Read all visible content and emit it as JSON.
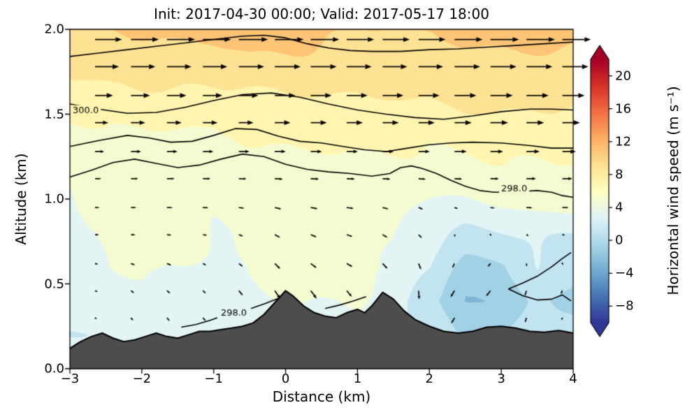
{
  "title": "Init: 2017-04-30 00:00; Valid: 2017-05-17 18:00",
  "chart_data": {
    "type": "heatmap",
    "title": "Init: 2017-04-30 00:00; Valid: 2017-05-17 18:00",
    "xlabel": "Distance (km)",
    "ylabel": "Altitude (km)",
    "xlim": [
      -3,
      4
    ],
    "ylim": [
      0,
      2
    ],
    "xticks": [
      -3,
      -2,
      -1,
      0,
      1,
      2,
      3,
      4
    ],
    "xticklabels": [
      "−3",
      "−2",
      "−1",
      "0",
      "1",
      "2",
      "3",
      "4"
    ],
    "yticks": [
      0,
      0.5,
      1,
      1.5,
      2
    ],
    "yticklabels": [
      "0.0",
      "0.5",
      "1.0",
      "1.5",
      "2.0"
    ],
    "colorbar": {
      "label": "Horizontal wind speed (m s⁻¹)",
      "ticks": [
        20,
        16,
        12,
        8,
        4,
        0,
        -4,
        -8
      ],
      "ticklabels": [
        "20",
        "16",
        "12",
        "8",
        "4",
        "0",
        "−4",
        "−8"
      ],
      "vmin": -10,
      "vmax": 22,
      "extend": "both",
      "cmap": "RdYlBu_r",
      "cmap_stops": [
        [
          0,
          [
            49,
            54,
            149
          ]
        ],
        [
          0.1,
          [
            69,
            117,
            180
          ]
        ],
        [
          0.2,
          [
            116,
            173,
            209
          ]
        ],
        [
          0.3,
          [
            171,
            217,
            233
          ]
        ],
        [
          0.4,
          [
            224,
            243,
            248
          ]
        ],
        [
          0.5,
          [
            255,
            255,
            191
          ]
        ],
        [
          0.6,
          [
            254,
            224,
            144
          ]
        ],
        [
          0.7,
          [
            253,
            174,
            97
          ]
        ],
        [
          0.8,
          [
            244,
            109,
            67
          ]
        ],
        [
          0.9,
          [
            215,
            48,
            39
          ]
        ],
        [
          1,
          [
            165,
            0,
            38
          ]
        ]
      ]
    },
    "grid": {
      "x": [
        -3,
        -2.5,
        -2,
        -1.5,
        -1,
        -0.5,
        0,
        0.5,
        1,
        1.5,
        2,
        2.5,
        3,
        3.5,
        4
      ],
      "y": [
        0,
        0.2,
        0.4,
        0.6,
        0.8,
        1,
        1.2,
        1.4,
        1.6,
        1.8,
        2
      ],
      "speed": [
        [
          2,
          2.5,
          2.5,
          3,
          3,
          3.5,
          3.5,
          3.5,
          3,
          2.5,
          1,
          0,
          0.5,
          1,
          1.5
        ],
        [
          2,
          2.5,
          3,
          3,
          3,
          3.5,
          4,
          4,
          3.5,
          2.5,
          1,
          -0.5,
          0,
          1,
          1.5
        ],
        [
          2.5,
          3,
          3.5,
          3.5,
          3.5,
          4,
          4,
          4,
          4,
          3,
          0.5,
          -2,
          -1.5,
          0.5,
          -0.5
        ],
        [
          3,
          4,
          4.5,
          4,
          3.5,
          4,
          4.5,
          4.5,
          4.5,
          4,
          2,
          -1,
          -0.5,
          2,
          0.5
        ],
        [
          3.5,
          4,
          4.5,
          4.5,
          4,
          4.5,
          5,
          5,
          4.5,
          4,
          2.5,
          1.5,
          2,
          2.5,
          2
        ],
        [
          4,
          4.5,
          4.5,
          4.5,
          4.5,
          5,
          5,
          5,
          5,
          4.5,
          4,
          4,
          4.5,
          5,
          5
        ],
        [
          4.5,
          5,
          5,
          5,
          5,
          5.5,
          5.5,
          5.5,
          5.5,
          5.5,
          5.5,
          5.5,
          6,
          6,
          6
        ],
        [
          5.5,
          6,
          6,
          6,
          6,
          6.5,
          6.5,
          6.5,
          6.5,
          6.5,
          6.5,
          7,
          7,
          7,
          7
        ],
        [
          7,
          7,
          7.5,
          7.5,
          7.5,
          7.5,
          8,
          8,
          8,
          8,
          8,
          8.5,
          8.5,
          8.5,
          8.5
        ],
        [
          8.5,
          9,
          9,
          9,
          9,
          9.5,
          9.5,
          9.5,
          9,
          9,
          9,
          9.5,
          9.5,
          9.5,
          9.5
        ],
        [
          10,
          10,
          10.5,
          10.5,
          10.5,
          11,
          10.5,
          10.5,
          10,
          10,
          10,
          10.5,
          10.5,
          10.5,
          10.5
        ]
      ],
      "u": [
        [
          0.5,
          0.5,
          0.5,
          0.5,
          0.5,
          0.5,
          1,
          1,
          1,
          0.5,
          0,
          -0.5,
          -0.5,
          0,
          0
        ],
        [
          0.5,
          0.5,
          0.5,
          1,
          1,
          1,
          1.5,
          1.5,
          1,
          0.5,
          0,
          -1,
          -0.5,
          0,
          0.5
        ],
        [
          0.5,
          1,
          1,
          1,
          1,
          1.5,
          2,
          2,
          1.5,
          1,
          -0.5,
          -2,
          -1.5,
          -0.5,
          -1
        ],
        [
          1,
          1,
          1.5,
          1.5,
          1,
          1.5,
          2,
          2,
          2,
          1.5,
          0.5,
          -1.5,
          -1,
          0.5,
          0
        ],
        [
          1,
          1.5,
          1.5,
          1.5,
          1.5,
          1.5,
          2,
          2,
          2,
          1.5,
          1,
          0,
          0.5,
          1,
          1
        ],
        [
          1.5,
          1.5,
          2,
          2,
          2,
          2,
          2.5,
          2.5,
          2.5,
          2,
          1.5,
          1.5,
          2,
          2.5,
          2.5
        ],
        [
          2.5,
          2.5,
          3,
          3,
          3,
          3,
          3,
          3,
          3,
          3,
          3,
          3.5,
          3.5,
          4,
          4
        ],
        [
          4,
          4,
          4.5,
          4.5,
          4.5,
          4.5,
          5,
          5,
          5,
          5,
          5,
          5.5,
          5.5,
          5.5,
          5.5
        ],
        [
          6,
          6,
          6.5,
          6.5,
          6.5,
          6.5,
          7,
          7,
          7,
          7,
          7,
          7.5,
          7.5,
          7.5,
          7.5
        ],
        [
          8,
          8.5,
          8.5,
          8.5,
          8.5,
          9,
          9,
          9,
          8.5,
          8.5,
          8.5,
          9,
          9,
          9,
          9
        ],
        [
          9.5,
          9.5,
          10,
          10,
          10,
          10.5,
          10,
          10,
          9.5,
          9.5,
          9.5,
          10,
          10,
          10,
          10
        ]
      ],
      "w": [
        [
          0,
          -0.3,
          -0.5,
          -0.5,
          -0.5,
          -1,
          -1.5,
          -1,
          -1,
          -1.5,
          -1,
          -0.5,
          -0.5,
          -0.5,
          0
        ],
        [
          0,
          -0.3,
          -0.5,
          -0.5,
          -0.5,
          -1,
          -1.5,
          -1,
          -1,
          -1.5,
          -1,
          -0.5,
          -0.5,
          -0.5,
          0
        ],
        [
          0,
          -0.3,
          -0.5,
          -0.5,
          -0.5,
          -1,
          -1.6,
          -1.4,
          -1,
          -1.8,
          -1.4,
          -1,
          -1,
          -1,
          -0.5
        ],
        [
          0,
          -0.2,
          -0.3,
          -0.3,
          -0.3,
          -0.6,
          -1,
          -0.6,
          -0.5,
          -1,
          -1,
          -0.6,
          -0.5,
          -0.5,
          -0.2
        ],
        [
          0,
          0,
          0,
          -0.1,
          -0.1,
          -0.3,
          -0.5,
          -0.3,
          -0.3,
          -0.5,
          -0.5,
          -0.3,
          -0.2,
          -0.2,
          0
        ],
        [
          0,
          0,
          0,
          0,
          0,
          -0.1,
          -0.2,
          -0.1,
          -0.1,
          -0.2,
          -0.2,
          -0.1,
          0,
          0,
          0
        ],
        [
          0,
          0,
          0,
          0,
          0,
          0,
          0,
          0,
          0,
          0,
          0,
          0,
          0,
          0,
          0
        ],
        [
          0,
          0,
          0,
          0,
          0,
          0,
          0,
          0,
          0,
          0,
          0,
          0,
          0,
          0,
          0
        ],
        [
          0,
          0,
          0,
          0,
          0,
          0,
          0,
          0,
          0,
          0,
          0,
          0,
          0,
          0,
          0
        ],
        [
          0,
          0,
          0,
          0,
          0,
          0,
          0,
          0,
          0,
          0,
          0,
          0,
          0,
          0,
          0
        ],
        [
          0,
          0,
          0,
          0,
          0,
          0,
          0,
          0,
          0,
          0,
          0,
          0,
          0,
          0,
          0
        ]
      ]
    },
    "terrain": {
      "color": "#4d4d4d",
      "x": [
        -3,
        -2.85,
        -2.7,
        -2.55,
        -2.4,
        -2.25,
        -2.1,
        -1.95,
        -1.8,
        -1.65,
        -1.5,
        -1.35,
        -1.2,
        -1.05,
        -0.9,
        -0.75,
        -0.6,
        -0.45,
        -0.3,
        -0.15,
        0,
        0.1,
        0.25,
        0.4,
        0.55,
        0.7,
        0.85,
        1,
        1.1,
        1.2,
        1.35,
        1.5,
        1.65,
        1.8,
        2,
        2.2,
        2.4,
        2.6,
        2.8,
        3,
        3.2,
        3.4,
        3.6,
        3.8,
        4
      ],
      "z": [
        0.12,
        0.16,
        0.19,
        0.21,
        0.18,
        0.16,
        0.17,
        0.19,
        0.21,
        0.19,
        0.18,
        0.2,
        0.22,
        0.22,
        0.23,
        0.24,
        0.25,
        0.27,
        0.32,
        0.39,
        0.46,
        0.43,
        0.37,
        0.33,
        0.31,
        0.3,
        0.33,
        0.35,
        0.33,
        0.37,
        0.45,
        0.41,
        0.34,
        0.29,
        0.25,
        0.22,
        0.21,
        0.22,
        0.245,
        0.25,
        0.24,
        0.22,
        0.215,
        0.225,
        0.21
      ]
    },
    "contours": [
      {
        "level": "",
        "points": [
          [
            -3,
            1.84
          ],
          [
            -2.6,
            1.86
          ],
          [
            -2.2,
            1.88
          ],
          [
            -1.8,
            1.9
          ],
          [
            -1.4,
            1.92
          ],
          [
            -1,
            1.94
          ],
          [
            -0.6,
            1.96
          ],
          [
            -0.3,
            1.965
          ],
          [
            0,
            1.95
          ],
          [
            0.3,
            1.915
          ],
          [
            0.6,
            1.89
          ],
          [
            0.9,
            1.875
          ],
          [
            1.2,
            1.87
          ],
          [
            1.6,
            1.87
          ],
          [
            2,
            1.88
          ],
          [
            2.4,
            1.885
          ],
          [
            2.8,
            1.895
          ],
          [
            3.2,
            1.905
          ],
          [
            3.6,
            1.915
          ],
          [
            4,
            1.925
          ]
        ]
      },
      {
        "level": "300.0",
        "points": [
          [
            -3,
            1.56
          ],
          [
            -2.6,
            1.53
          ],
          [
            -2.2,
            1.505
          ],
          [
            -1.8,
            1.51
          ],
          [
            -1.4,
            1.54
          ],
          [
            -1,
            1.58
          ],
          [
            -0.6,
            1.615
          ],
          [
            -0.2,
            1.625
          ],
          [
            0.2,
            1.6
          ],
          [
            0.6,
            1.56
          ],
          [
            1,
            1.525
          ],
          [
            1.4,
            1.5
          ],
          [
            1.8,
            1.48
          ],
          [
            2.2,
            1.47
          ],
          [
            2.6,
            1.49
          ],
          [
            3,
            1.515
          ],
          [
            3.4,
            1.53
          ],
          [
            3.7,
            1.53
          ],
          [
            4,
            1.525
          ]
        ]
      },
      {
        "level": "",
        "points": [
          [
            -3,
            1.31
          ],
          [
            -2.6,
            1.345
          ],
          [
            -2.2,
            1.375
          ],
          [
            -1.9,
            1.36
          ],
          [
            -1.6,
            1.335
          ],
          [
            -1.3,
            1.34
          ],
          [
            -1,
            1.375
          ],
          [
            -0.7,
            1.415
          ],
          [
            -0.4,
            1.41
          ],
          [
            -0.1,
            1.37
          ],
          [
            0.2,
            1.34
          ],
          [
            0.5,
            1.33
          ],
          [
            0.8,
            1.31
          ],
          [
            1.1,
            1.29
          ],
          [
            1.4,
            1.28
          ],
          [
            1.7,
            1.3
          ],
          [
            2,
            1.32
          ],
          [
            2.3,
            1.33
          ],
          [
            2.6,
            1.335
          ],
          [
            3,
            1.33
          ],
          [
            3.4,
            1.315
          ],
          [
            3.7,
            1.3
          ],
          [
            4,
            1.3
          ]
        ]
      },
      {
        "level": "298.0",
        "points": [
          [
            -3,
            1.13
          ],
          [
            -2.7,
            1.17
          ],
          [
            -2.4,
            1.215
          ],
          [
            -2.1,
            1.235
          ],
          [
            -1.8,
            1.21
          ],
          [
            -1.5,
            1.185
          ],
          [
            -1.2,
            1.2
          ],
          [
            -0.9,
            1.235
          ],
          [
            -0.6,
            1.265
          ],
          [
            -0.3,
            1.25
          ],
          [
            0,
            1.205
          ],
          [
            0.3,
            1.175
          ],
          [
            0.6,
            1.16
          ],
          [
            0.9,
            1.15
          ],
          [
            1.2,
            1.135
          ],
          [
            1.45,
            1.15
          ],
          [
            1.6,
            1.185
          ],
          [
            1.75,
            1.195
          ],
          [
            1.9,
            1.18
          ],
          [
            2.1,
            1.15
          ],
          [
            2.3,
            1.11
          ],
          [
            2.5,
            1.075
          ],
          [
            2.7,
            1.05
          ],
          [
            2.9,
            1.04
          ],
          [
            3.1,
            1.04
          ],
          [
            3.3,
            1.045
          ],
          [
            3.5,
            1.05
          ],
          [
            3.7,
            1.04
          ],
          [
            3.85,
            1.02
          ],
          [
            4,
            1.01
          ]
        ]
      },
      {
        "level": "298.0",
        "points": [
          [
            -1.45,
            0.245
          ],
          [
            -1.25,
            0.26
          ],
          [
            -1.05,
            0.285
          ],
          [
            -0.95,
            0.3
          ]
        ]
      },
      {
        "level": "298.0",
        "points": [
          [
            -0.48,
            0.355
          ],
          [
            -0.28,
            0.385
          ],
          [
            -0.1,
            0.415
          ],
          [
            0.05,
            0.43
          ]
        ]
      },
      {
        "level": "298.0",
        "points": [
          [
            0.55,
            0.355
          ],
          [
            0.75,
            0.375
          ],
          [
            0.95,
            0.4
          ],
          [
            1.12,
            0.425
          ]
        ]
      },
      {
        "level": "",
        "points": [
          [
            3.1,
            0.47
          ],
          [
            3.3,
            0.505
          ],
          [
            3.5,
            0.545
          ],
          [
            3.7,
            0.6
          ],
          [
            3.85,
            0.65
          ],
          [
            3.97,
            0.685
          ]
        ]
      },
      {
        "level": "",
        "points": [
          [
            3.1,
            0.47
          ],
          [
            3.3,
            0.43
          ],
          [
            3.5,
            0.405
          ],
          [
            3.7,
            0.41
          ],
          [
            3.85,
            0.435
          ],
          [
            3.97,
            0.4
          ]
        ]
      }
    ],
    "contour_labels": [
      {
        "text": "300.0",
        "x": -2.78,
        "y": 1.52
      },
      {
        "text": "298.0",
        "x": 3.18,
        "y": 1.06
      },
      {
        "text": "298.0",
        "x": -0.72,
        "y": 0.325
      }
    ],
    "quiver": {
      "x0": -2.65,
      "dx": 0.5,
      "cols": 14,
      "levels": [
        0.3,
        0.46,
        0.62,
        0.79,
        0.95,
        1.12,
        1.28,
        1.45,
        1.61,
        1.78,
        1.94
      ],
      "scale": 4.2,
      "w_exaggeration": 2.2
    }
  }
}
